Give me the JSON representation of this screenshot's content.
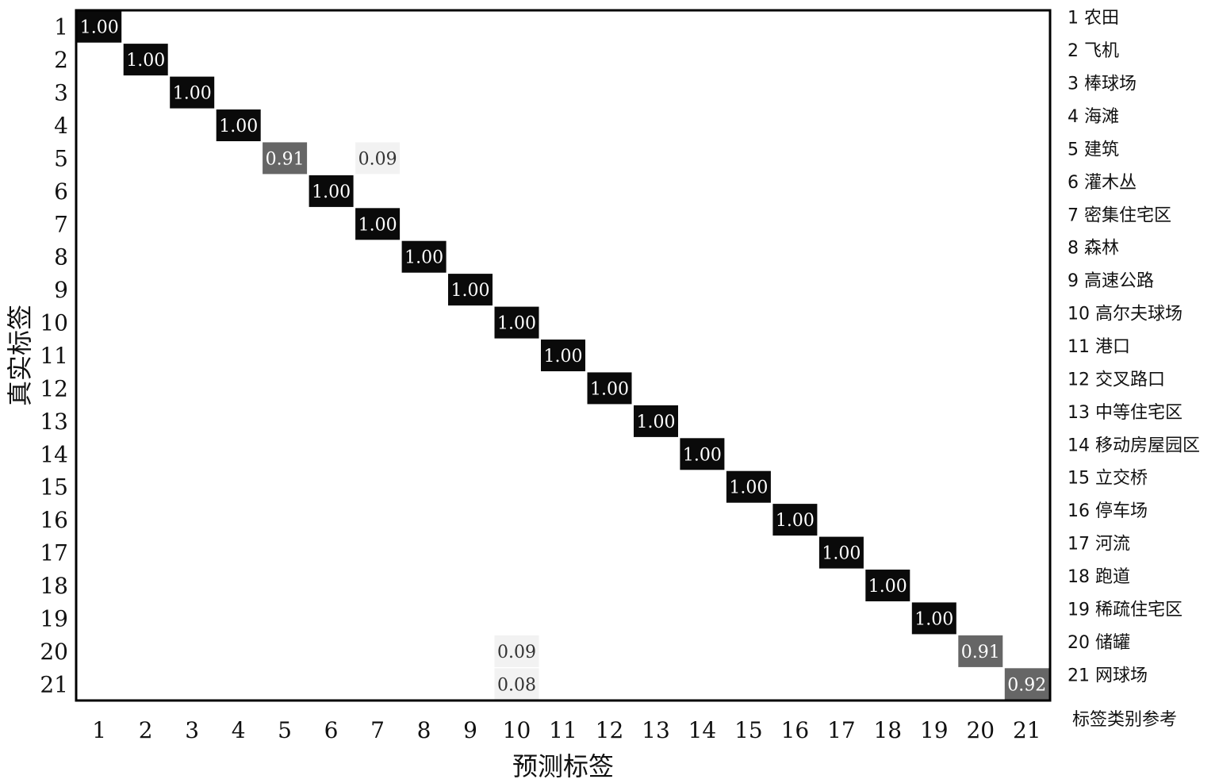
{
  "chart_data": {
    "type": "heatmap",
    "title": "",
    "xlabel": "预测标签",
    "ylabel": "真实标签",
    "x_ticks": [
      "1",
      "2",
      "3",
      "4",
      "5",
      "6",
      "7",
      "8",
      "9",
      "10",
      "11",
      "12",
      "13",
      "14",
      "15",
      "16",
      "17",
      "18",
      "19",
      "20",
      "21"
    ],
    "y_ticks": [
      "1",
      "2",
      "3",
      "4",
      "5",
      "6",
      "7",
      "8",
      "9",
      "10",
      "11",
      "12",
      "13",
      "14",
      "15",
      "16",
      "17",
      "18",
      "19",
      "20",
      "21"
    ],
    "value_range": [
      0,
      1
    ],
    "colormap": "white-to-black",
    "cells": [
      {
        "row": 1,
        "col": 1,
        "value": 1.0,
        "label": "1.00"
      },
      {
        "row": 2,
        "col": 2,
        "value": 1.0,
        "label": "1.00"
      },
      {
        "row": 3,
        "col": 3,
        "value": 1.0,
        "label": "1.00"
      },
      {
        "row": 4,
        "col": 4,
        "value": 1.0,
        "label": "1.00"
      },
      {
        "row": 5,
        "col": 5,
        "value": 0.91,
        "label": "0.91"
      },
      {
        "row": 5,
        "col": 7,
        "value": 0.09,
        "label": "0.09"
      },
      {
        "row": 6,
        "col": 6,
        "value": 1.0,
        "label": "1.00"
      },
      {
        "row": 7,
        "col": 7,
        "value": 1.0,
        "label": "1.00"
      },
      {
        "row": 8,
        "col": 8,
        "value": 1.0,
        "label": "1.00"
      },
      {
        "row": 9,
        "col": 9,
        "value": 1.0,
        "label": "1.00"
      },
      {
        "row": 10,
        "col": 10,
        "value": 1.0,
        "label": "1.00"
      },
      {
        "row": 11,
        "col": 11,
        "value": 1.0,
        "label": "1.00"
      },
      {
        "row": 12,
        "col": 12,
        "value": 1.0,
        "label": "1.00"
      },
      {
        "row": 13,
        "col": 13,
        "value": 1.0,
        "label": "1.00"
      },
      {
        "row": 14,
        "col": 14,
        "value": 1.0,
        "label": "1.00"
      },
      {
        "row": 15,
        "col": 15,
        "value": 1.0,
        "label": "1.00"
      },
      {
        "row": 16,
        "col": 16,
        "value": 1.0,
        "label": "1.00"
      },
      {
        "row": 17,
        "col": 17,
        "value": 1.0,
        "label": "1.00"
      },
      {
        "row": 18,
        "col": 18,
        "value": 1.0,
        "label": "1.00"
      },
      {
        "row": 19,
        "col": 19,
        "value": 1.0,
        "label": "1.00"
      },
      {
        "row": 20,
        "col": 10,
        "value": 0.09,
        "label": "0.09"
      },
      {
        "row": 20,
        "col": 20,
        "value": 0.91,
        "label": "0.91"
      },
      {
        "row": 21,
        "col": 10,
        "value": 0.08,
        "label": "0.08"
      },
      {
        "row": 21,
        "col": 21,
        "value": 0.92,
        "label": "0.92"
      }
    ],
    "legend": {
      "title": "标签类别参考",
      "entries": [
        "1 农田",
        "2 飞机",
        "3 棒球场",
        "4 海滩",
        "5 建筑",
        "6 灌木丛",
        "7 密集住宅区",
        "8 森林",
        "9 高速公路",
        "10 高尔夫球场",
        "11 港口",
        "12 交叉路口",
        "13 中等住宅区",
        "14 移动房屋园区",
        "15 立交桥",
        "16 停车场",
        "17 河流",
        "18 跑道",
        "19 稀疏住宅区",
        "20 储罐",
        "21 网球场"
      ],
      "placement": "right"
    },
    "grid": false
  },
  "colors": {
    "dark_cell": "#0a0a0a",
    "mid_cell": "#666666",
    "light_cell": "#f2f2f2",
    "frame": "#000000"
  }
}
